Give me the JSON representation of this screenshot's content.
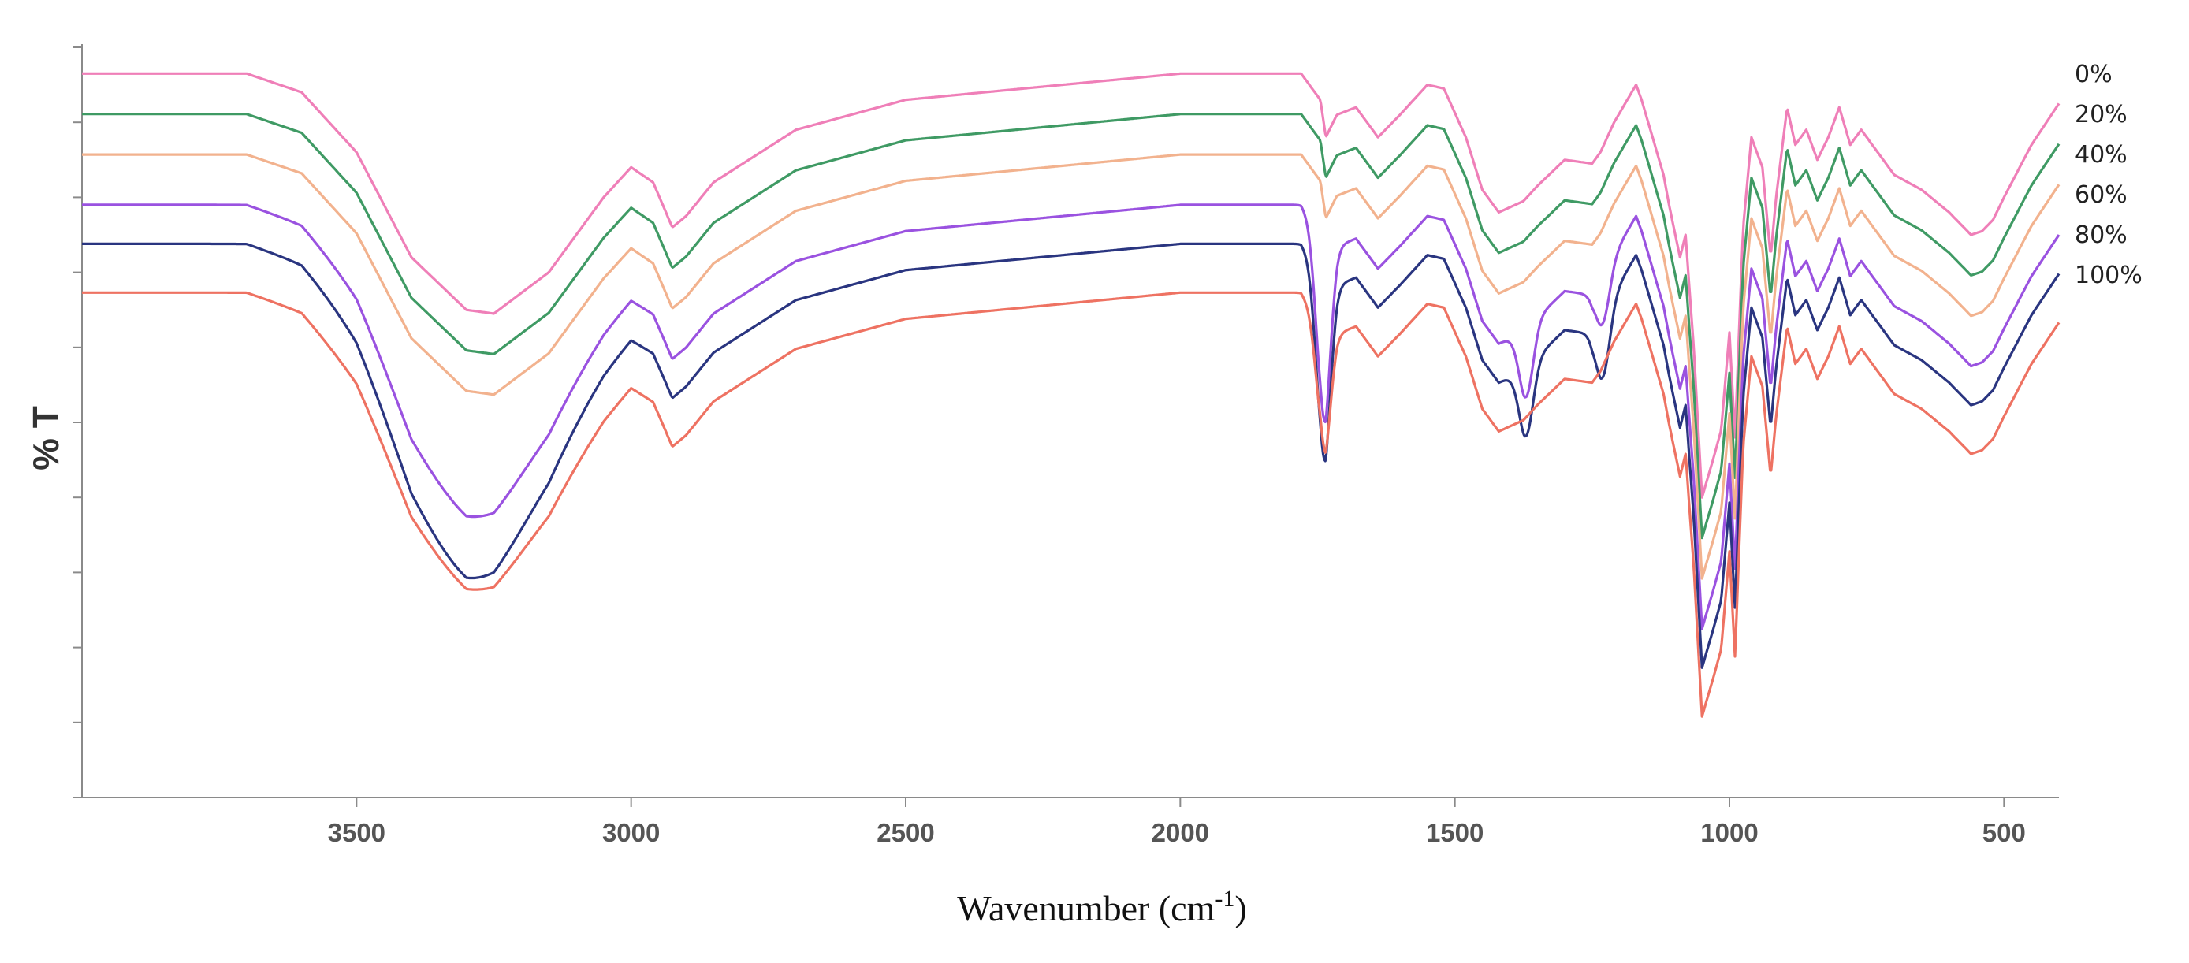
{
  "chart_data": {
    "type": "line",
    "title": "",
    "xlabel": {
      "main": "Wavenumber (cm",
      "sup": "-1",
      "end": ")"
    },
    "ylabel": "% T",
    "xlim": [
      4000,
      400
    ],
    "ylim": [
      0,
      100
    ],
    "x_reversed": true,
    "x_ticks": [
      3500,
      3000,
      2500,
      2000,
      1500,
      1000,
      500
    ],
    "y_ticks_count": 11,
    "y_tick_labels": false,
    "grid": false,
    "legend_position": "right",
    "series": [
      {
        "name": "0%",
        "color": "#ef7fb8",
        "offset": 0
      },
      {
        "name": "20%",
        "color": "#3f9a64",
        "offset": -5.4
      },
      {
        "name": "40%",
        "color": "#f2b28e",
        "offset": -10.8
      },
      {
        "name": "60%",
        "color": "#9a52e0",
        "offset": -17.5
      },
      {
        "name": "80%",
        "color": "#2a3580",
        "offset": -22.7
      },
      {
        "name": "100%",
        "color": "#ee7262",
        "offset": -29.2
      }
    ],
    "profile_x": [
      4000,
      3700,
      3600,
      3500,
      3400,
      3300,
      3250,
      3150,
      3050,
      3000,
      2960,
      2925,
      2900,
      2850,
      2700,
      2500,
      2000,
      1780,
      1745,
      1735,
      1715,
      1680,
      1640,
      1600,
      1550,
      1520,
      1480,
      1450,
      1420,
      1375,
      1350,
      1300,
      1250,
      1235,
      1210,
      1170,
      1160,
      1120,
      1110,
      1090,
      1080,
      1065,
      1050,
      1030,
      1015,
      1000,
      990,
      975,
      960,
      940,
      925,
      915,
      895,
      880,
      860,
      840,
      820,
      800,
      780,
      760,
      740,
      700,
      650,
      600,
      560,
      540,
      520,
      500,
      450,
      400
    ],
    "profile_y": [
      96.5,
      96.5,
      94,
      86,
      72,
      65,
      64.5,
      70,
      80,
      84,
      82,
      76,
      77.5,
      82,
      89,
      93,
      96.5,
      96.5,
      93,
      88,
      91,
      92,
      88,
      91,
      95,
      94.5,
      88,
      81,
      78,
      79.5,
      81.5,
      85,
      84.5,
      86,
      90,
      95,
      93,
      83,
      79,
      72,
      75,
      60,
      40,
      45,
      49,
      62,
      48,
      76,
      88,
      84,
      72,
      80,
      92,
      87,
      89,
      85,
      88,
      92,
      87,
      89,
      87,
      83,
      81,
      78,
      75,
      75.5,
      77,
      80,
      87,
      92.5
    ],
    "series_variation": [
      {
        "name": "60%",
        "extra": [
          {
            "x": 3300,
            "dy": -10
          },
          {
            "x": 1740,
            "dy": -22
          },
          {
            "x": 1370,
            "dy": -9
          },
          {
            "x": 1230,
            "dy": -6
          }
        ]
      },
      {
        "name": "80%",
        "extra": [
          {
            "x": 3300,
            "dy": -13
          },
          {
            "x": 1740,
            "dy": -22
          },
          {
            "x": 1370,
            "dy": -9
          },
          {
            "x": 1230,
            "dy": -8
          }
        ]
      },
      {
        "name": "100%",
        "extra": [
          {
            "x": 3300,
            "dy": -8
          },
          {
            "x": 1740,
            "dy": -14
          }
        ]
      }
    ]
  }
}
